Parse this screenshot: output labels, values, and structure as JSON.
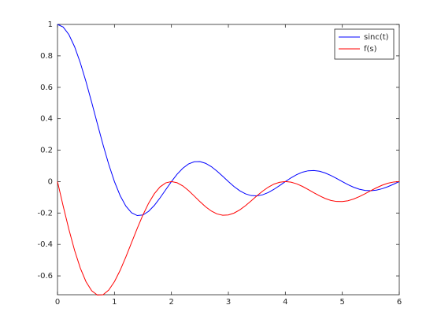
{
  "chart_data": {
    "type": "line",
    "x": [
      0,
      0.1,
      0.2,
      0.3,
      0.4,
      0.5,
      0.6,
      0.7,
      0.8,
      0.9,
      1,
      1.1,
      1.2,
      1.3,
      1.4,
      1.5,
      1.6,
      1.7,
      1.8,
      1.9,
      2,
      2.1,
      2.2,
      2.3,
      2.4,
      2.5,
      2.6,
      2.7,
      2.8,
      2.9,
      3,
      3.1,
      3.2,
      3.3,
      3.4,
      3.5,
      3.6,
      3.7,
      3.8,
      3.9,
      4,
      4.1,
      4.2,
      4.3,
      4.4,
      4.5,
      4.6,
      4.7,
      4.8,
      4.9,
      5,
      5.1,
      5.2,
      5.3,
      5.4,
      5.5,
      5.6,
      5.7,
      5.8,
      5.9,
      6
    ],
    "series": [
      {
        "name": "sinc(t)",
        "color": "#0000ff",
        "values": [
          1,
          0.9836,
          0.9355,
          0.8584,
          0.7568,
          0.6366,
          0.5046,
          0.3679,
          0.2339,
          0.1093,
          0,
          -0.0894,
          -0.1559,
          -0.1981,
          -0.2162,
          -0.2122,
          -0.1892,
          -0.1515,
          -0.1039,
          -0.0518,
          0,
          0.0468,
          0.085,
          0.112,
          0.1261,
          0.1273,
          0.1164,
          0.0954,
          0.0668,
          0.0339,
          0,
          -0.0317,
          -0.0585,
          -0.078,
          -0.089,
          -0.0909,
          -0.0841,
          -0.0696,
          -0.0492,
          -0.0252,
          0,
          0.024,
          0.0445,
          0.0599,
          0.0688,
          0.0707,
          0.0658,
          0.0548,
          0.039,
          0.0201,
          0,
          -0.0193,
          -0.036,
          -0.0486,
          -0.0561,
          -0.0579,
          -0.0541,
          -0.0452,
          -0.0323,
          -0.0167,
          0
        ]
      },
      {
        "name": "f(s)",
        "color": "#ff0000",
        "values": [
          0,
          -0.1558,
          -0.304,
          -0.4374,
          -0.5499,
          -0.6366,
          -0.6945,
          -0.722,
          -0.7198,
          -0.69,
          -0.6366,
          -0.5646,
          -0.4799,
          -0.3888,
          -0.2976,
          -0.2122,
          -0.1375,
          -0.0772,
          -0.0338,
          -0.0082,
          0,
          -0.0074,
          -0.0276,
          -0.057,
          -0.0916,
          -0.1273,
          -0.1603,
          -0.1872,
          -0.2057,
          -0.2142,
          -0.2122,
          -0.2003,
          -0.1799,
          -0.1532,
          -0.1226,
          -0.0909,
          -0.0611,
          -0.0355,
          -0.016,
          -0.004,
          0,
          -0.0038,
          -0.0145,
          -0.0305,
          -0.05,
          -0.0707,
          -0.0906,
          -0.1075,
          -0.12,
          -0.1267,
          -0.1273,
          -0.1218,
          -0.1107,
          -0.0954,
          -0.0772,
          -0.0579,
          -0.0393,
          -0.023,
          -0.0105,
          -0.0026,
          0
        ]
      }
    ],
    "xlim": [
      0,
      6
    ],
    "xticks": [
      0,
      1,
      2,
      3,
      4,
      5,
      6
    ],
    "ylim": [
      -0.72,
      1
    ],
    "yticks": [
      -0.6,
      -0.4,
      -0.2,
      0,
      0.2,
      0.4,
      0.6,
      0.8,
      1
    ],
    "legend": "upper right"
  }
}
